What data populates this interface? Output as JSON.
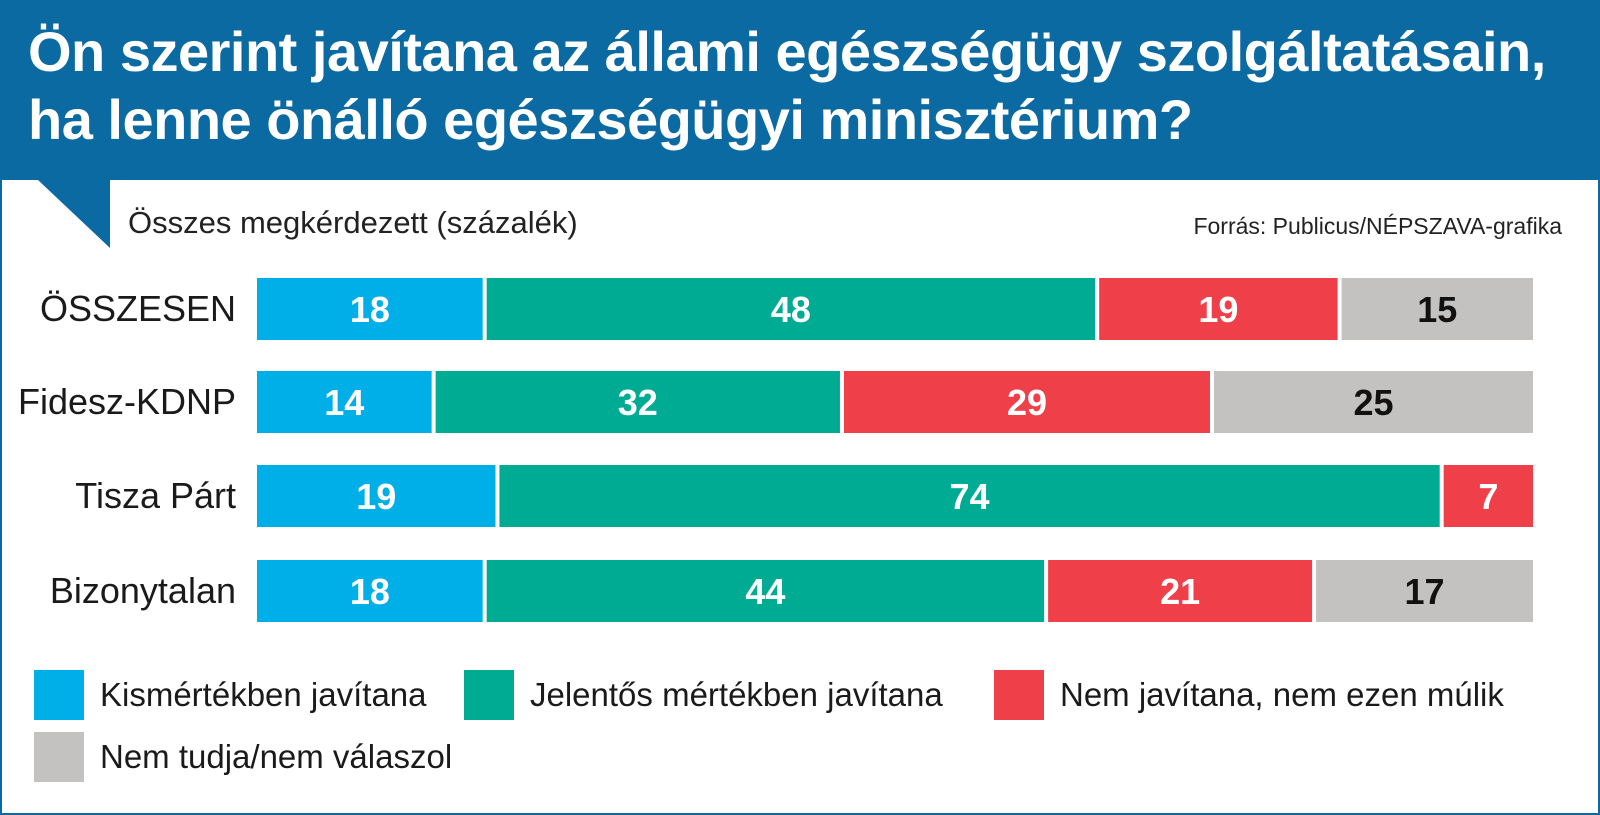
{
  "title_line1": "Ön szerint javítana az állami egészségügy szolgáltatásain,",
  "title_line2": "ha lenne önálló egészségügyi minisztérium?",
  "subtitle": "Összes megkérdezett (százalék)",
  "source": "Forrás: Publicus/NÉPSZAVA-grafika",
  "colors": {
    "header": "#0a6aa1",
    "kis": "#00aee8",
    "jelentos": "#00ab94",
    "nem": "#ef3f49",
    "nemtudja": "#c4c2c0"
  },
  "chart_data": {
    "type": "bar",
    "orientation": "horizontal",
    "stacked": true,
    "title": "Ön szerint javítana az állami egészségügy szolgáltatásain, ha lenne önálló egészségügyi minisztérium?",
    "unit": "százalék",
    "categories": [
      "ÖSSZESEN",
      "Fidesz-KDNP",
      "Tisza Párt",
      "Bizonytalan"
    ],
    "series": [
      {
        "name": "Kismértékben javítana",
        "color": "#00aee8",
        "label_color": "#ffffff",
        "values": [
          18,
          14,
          19,
          18
        ]
      },
      {
        "name": "Jelentős mértékben javítana",
        "color": "#00ab94",
        "label_color": "#ffffff",
        "values": [
          48,
          32,
          74,
          44
        ]
      },
      {
        "name": "Nem javítana, nem ezen múlik",
        "color": "#ef3f49",
        "label_color": "#ffffff",
        "values": [
          19,
          29,
          7,
          21
        ]
      },
      {
        "name": "Nem tudja/nem válaszol",
        "color": "#c4c2c0",
        "label_color": "#111111",
        "values": [
          15,
          25,
          0,
          17
        ]
      }
    ],
    "xlim": [
      0,
      100
    ]
  },
  "legend": [
    {
      "label": "Kismértékben javítana",
      "color": "#00aee8"
    },
    {
      "label": "Jelentős mértékben javítana",
      "color": "#00ab94"
    },
    {
      "label": "Nem javítana, nem ezen múlik",
      "color": "#ef3f49"
    },
    {
      "label": "Nem tudja/nem válaszol",
      "color": "#c4c2c0"
    }
  ]
}
